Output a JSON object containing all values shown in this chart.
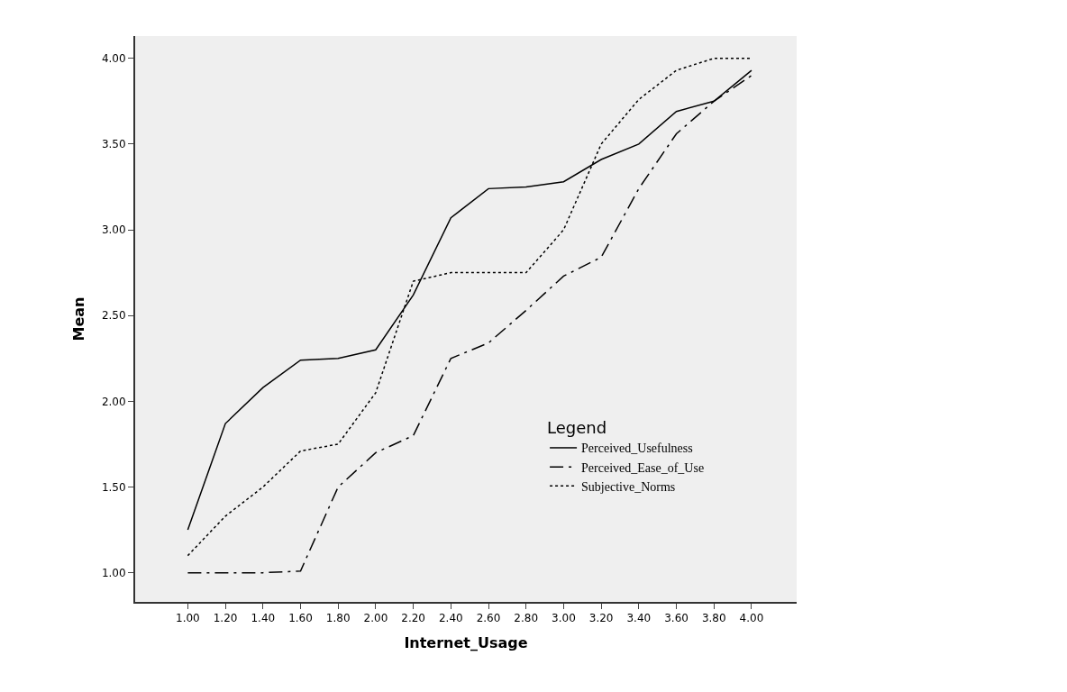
{
  "chart_data": {
    "type": "line",
    "xlabel": "Internet_Usage",
    "ylabel": "Mean",
    "legend_title": "Legend",
    "legend": "bottom right",
    "grid": false,
    "marker": "none",
    "categories": [
      "1.00",
      "1.20",
      "1.40",
      "1.60",
      "1.80",
      "2.00",
      "2.20",
      "2.40",
      "2.60",
      "2.80",
      "3.00",
      "3.20",
      "3.40",
      "3.60",
      "3.80",
      "4.00"
    ],
    "ylim": [
      0.83,
      4.13
    ],
    "yticks": [
      {
        "value": 1,
        "label": "1.00"
      },
      {
        "value": 1.5,
        "label": "1.50"
      },
      {
        "value": 2,
        "label": "2.00"
      },
      {
        "value": 2.5,
        "label": "2.50"
      },
      {
        "value": 3,
        "label": "3.00"
      },
      {
        "value": 3.5,
        "label": "3.50"
      },
      {
        "value": 4,
        "label": "4.00"
      }
    ],
    "series": [
      {
        "name": "Perceived_Usefulness",
        "color": "#000000",
        "line_style": "solid",
        "values": [
          1.25,
          1.87,
          2.08,
          2.24,
          2.25,
          2.3,
          2.62,
          3.07,
          3.24,
          3.25,
          3.28,
          3.41,
          3.5,
          3.69,
          3.75,
          3.93
        ]
      },
      {
        "name": "Perceived_Ease_of_Use",
        "color": "#000000",
        "line_style": "dashed",
        "values": [
          1.0,
          1.0,
          1.0,
          1.01,
          1.5,
          1.7,
          1.8,
          2.25,
          2.34,
          2.53,
          2.73,
          2.84,
          3.24,
          3.56,
          3.75,
          3.9
        ]
      },
      {
        "name": "Subjective_Norms",
        "color": "#000000",
        "line_style": "dotted",
        "values": [
          1.1,
          1.33,
          1.5,
          1.71,
          1.75,
          2.05,
          2.7,
          2.75,
          2.75,
          2.75,
          3.0,
          3.5,
          3.76,
          3.93,
          4.0,
          4.0
        ]
      }
    ]
  }
}
